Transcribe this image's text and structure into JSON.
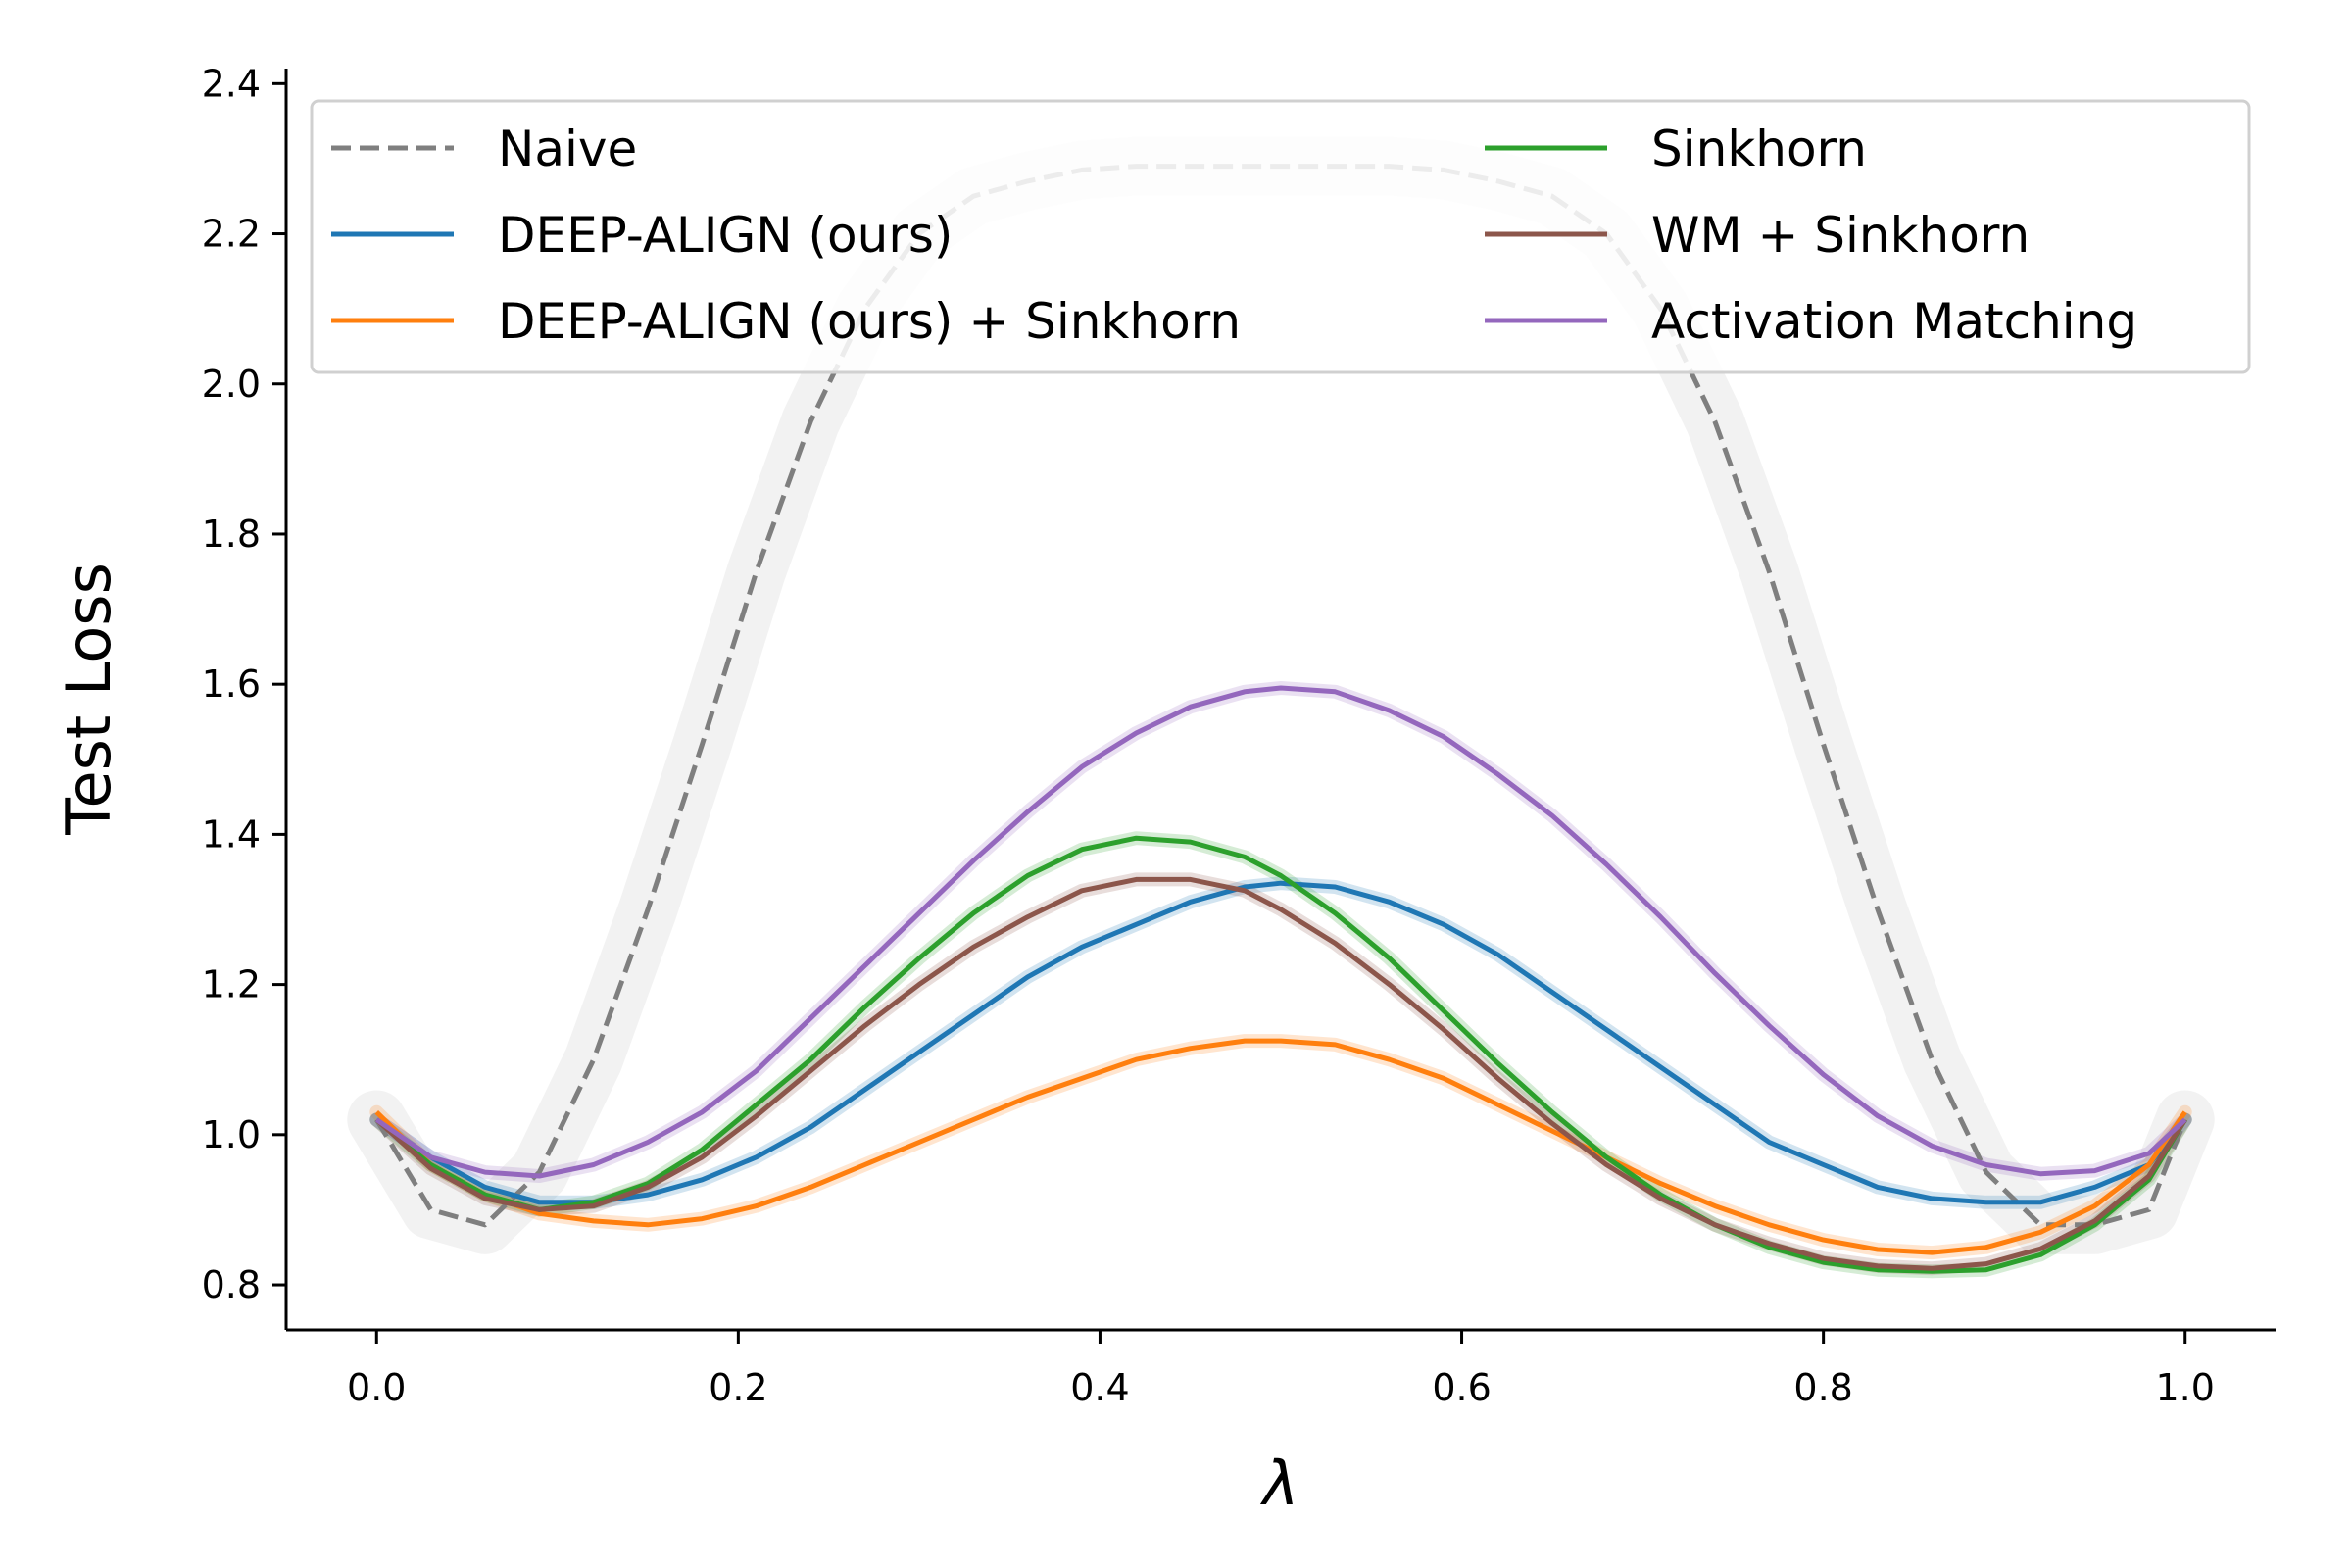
{
  "chart_data": {
    "type": "line",
    "xlabel": "λ",
    "ylabel": "Test Loss",
    "xlim": [
      -0.05,
      1.05
    ],
    "ylim": [
      0.74,
      2.42
    ],
    "xticks": [
      0.0,
      0.2,
      0.4,
      0.6,
      0.8,
      1.0
    ],
    "xtick_labels": [
      "0.0",
      "0.2",
      "0.4",
      "0.6",
      "0.8",
      "1.0"
    ],
    "yticks": [
      0.8,
      1.0,
      1.2,
      1.4,
      1.6,
      1.8,
      2.0,
      2.2,
      2.4
    ],
    "ytick_labels": [
      "0.8",
      "1.0",
      "1.2",
      "1.4",
      "1.6",
      "1.8",
      "2.0",
      "2.2",
      "2.4"
    ],
    "grid": false,
    "legend_position": "top",
    "x": [
      0.0,
      0.03,
      0.06,
      0.09,
      0.12,
      0.15,
      0.18,
      0.21,
      0.24,
      0.27,
      0.3,
      0.33,
      0.36,
      0.39,
      0.42,
      0.45,
      0.48,
      0.5,
      0.53,
      0.56,
      0.59,
      0.62,
      0.65,
      0.68,
      0.71,
      0.74,
      0.77,
      0.8,
      0.83,
      0.86,
      0.89,
      0.92,
      0.95,
      0.98,
      1.0
    ],
    "series": [
      {
        "name": "Naive",
        "color": "#7f7f7f",
        "dashed": true,
        "values": [
          1.02,
          0.9,
          0.88,
          0.95,
          1.1,
          1.3,
          1.52,
          1.75,
          1.95,
          2.1,
          2.2,
          2.25,
          2.27,
          2.285,
          2.29,
          2.29,
          2.29,
          2.29,
          2.29,
          2.29,
          2.285,
          2.27,
          2.25,
          2.2,
          2.1,
          1.95,
          1.75,
          1.52,
          1.3,
          1.1,
          0.95,
          0.88,
          0.88,
          0.9,
          1.02
        ]
      },
      {
        "name": "DEEP-ALIGN (ours)",
        "color": "#1f77b4",
        "values": [
          1.02,
          0.97,
          0.93,
          0.91,
          0.91,
          0.92,
          0.94,
          0.97,
          1.01,
          1.06,
          1.11,
          1.16,
          1.21,
          1.25,
          1.28,
          1.31,
          1.33,
          1.335,
          1.33,
          1.31,
          1.28,
          1.24,
          1.19,
          1.14,
          1.09,
          1.04,
          0.99,
          0.96,
          0.93,
          0.915,
          0.91,
          0.91,
          0.93,
          0.96,
          1.02
        ]
      },
      {
        "name": "DEEP-ALIGN (ours) + Sinkhorn",
        "color": "#ff7f0e",
        "values": [
          1.03,
          0.96,
          0.92,
          0.895,
          0.885,
          0.88,
          0.888,
          0.905,
          0.93,
          0.96,
          0.99,
          1.02,
          1.05,
          1.075,
          1.1,
          1.115,
          1.125,
          1.125,
          1.12,
          1.1,
          1.075,
          1.04,
          1.005,
          0.97,
          0.935,
          0.905,
          0.88,
          0.86,
          0.847,
          0.843,
          0.85,
          0.87,
          0.905,
          0.96,
          1.03
        ]
      },
      {
        "name": "Sinkhorn",
        "color": "#2ca02c",
        "values": [
          1.02,
          0.96,
          0.92,
          0.9,
          0.91,
          0.935,
          0.98,
          1.04,
          1.1,
          1.17,
          1.235,
          1.295,
          1.345,
          1.38,
          1.395,
          1.39,
          1.37,
          1.345,
          1.295,
          1.235,
          1.165,
          1.095,
          1.03,
          0.97,
          0.92,
          0.88,
          0.85,
          0.83,
          0.82,
          0.818,
          0.82,
          0.84,
          0.88,
          0.94,
          1.02
        ]
      },
      {
        "name": "WM + Sinkhorn",
        "color": "#8c564b",
        "values": [
          1.02,
          0.955,
          0.915,
          0.9,
          0.905,
          0.93,
          0.97,
          1.025,
          1.085,
          1.145,
          1.2,
          1.25,
          1.29,
          1.325,
          1.34,
          1.34,
          1.325,
          1.3,
          1.255,
          1.2,
          1.14,
          1.075,
          1.015,
          0.96,
          0.915,
          0.88,
          0.855,
          0.835,
          0.825,
          0.822,
          0.828,
          0.848,
          0.885,
          0.945,
          1.02
        ]
      },
      {
        "name": "Activation Matching",
        "color": "#9467bd",
        "values": [
          1.02,
          0.97,
          0.95,
          0.945,
          0.96,
          0.99,
          1.03,
          1.085,
          1.155,
          1.225,
          1.295,
          1.365,
          1.43,
          1.49,
          1.535,
          1.57,
          1.59,
          1.595,
          1.59,
          1.565,
          1.53,
          1.48,
          1.425,
          1.36,
          1.29,
          1.215,
          1.145,
          1.08,
          1.025,
          0.985,
          0.96,
          0.948,
          0.952,
          0.975,
          1.02
        ]
      }
    ]
  }
}
